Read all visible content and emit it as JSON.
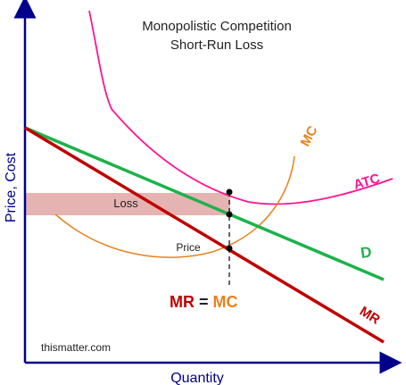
{
  "title": {
    "line1": "Monopolistic Competition",
    "line2": "Short-Run Loss"
  },
  "axes": {
    "x_label": "Quantity",
    "y_label": "Price, Cost"
  },
  "curves": {
    "mc_label": "MC",
    "atc_label": "ATC",
    "d_label": "D",
    "mr_label": "MR"
  },
  "annotations": {
    "loss_label": "Loss",
    "price_label": "Price",
    "condition": {
      "left": "MR",
      "equals": " = ",
      "right": "MC"
    },
    "watermark": "thismatter.com"
  },
  "colors": {
    "axis": "#00008b",
    "title": "#222222",
    "atc": "#ff1493",
    "mc": "#e8821e",
    "demand": "#1db24b",
    "mr": "#c00000",
    "loss_fill": "#e6b3b3",
    "points": "#000000"
  }
}
